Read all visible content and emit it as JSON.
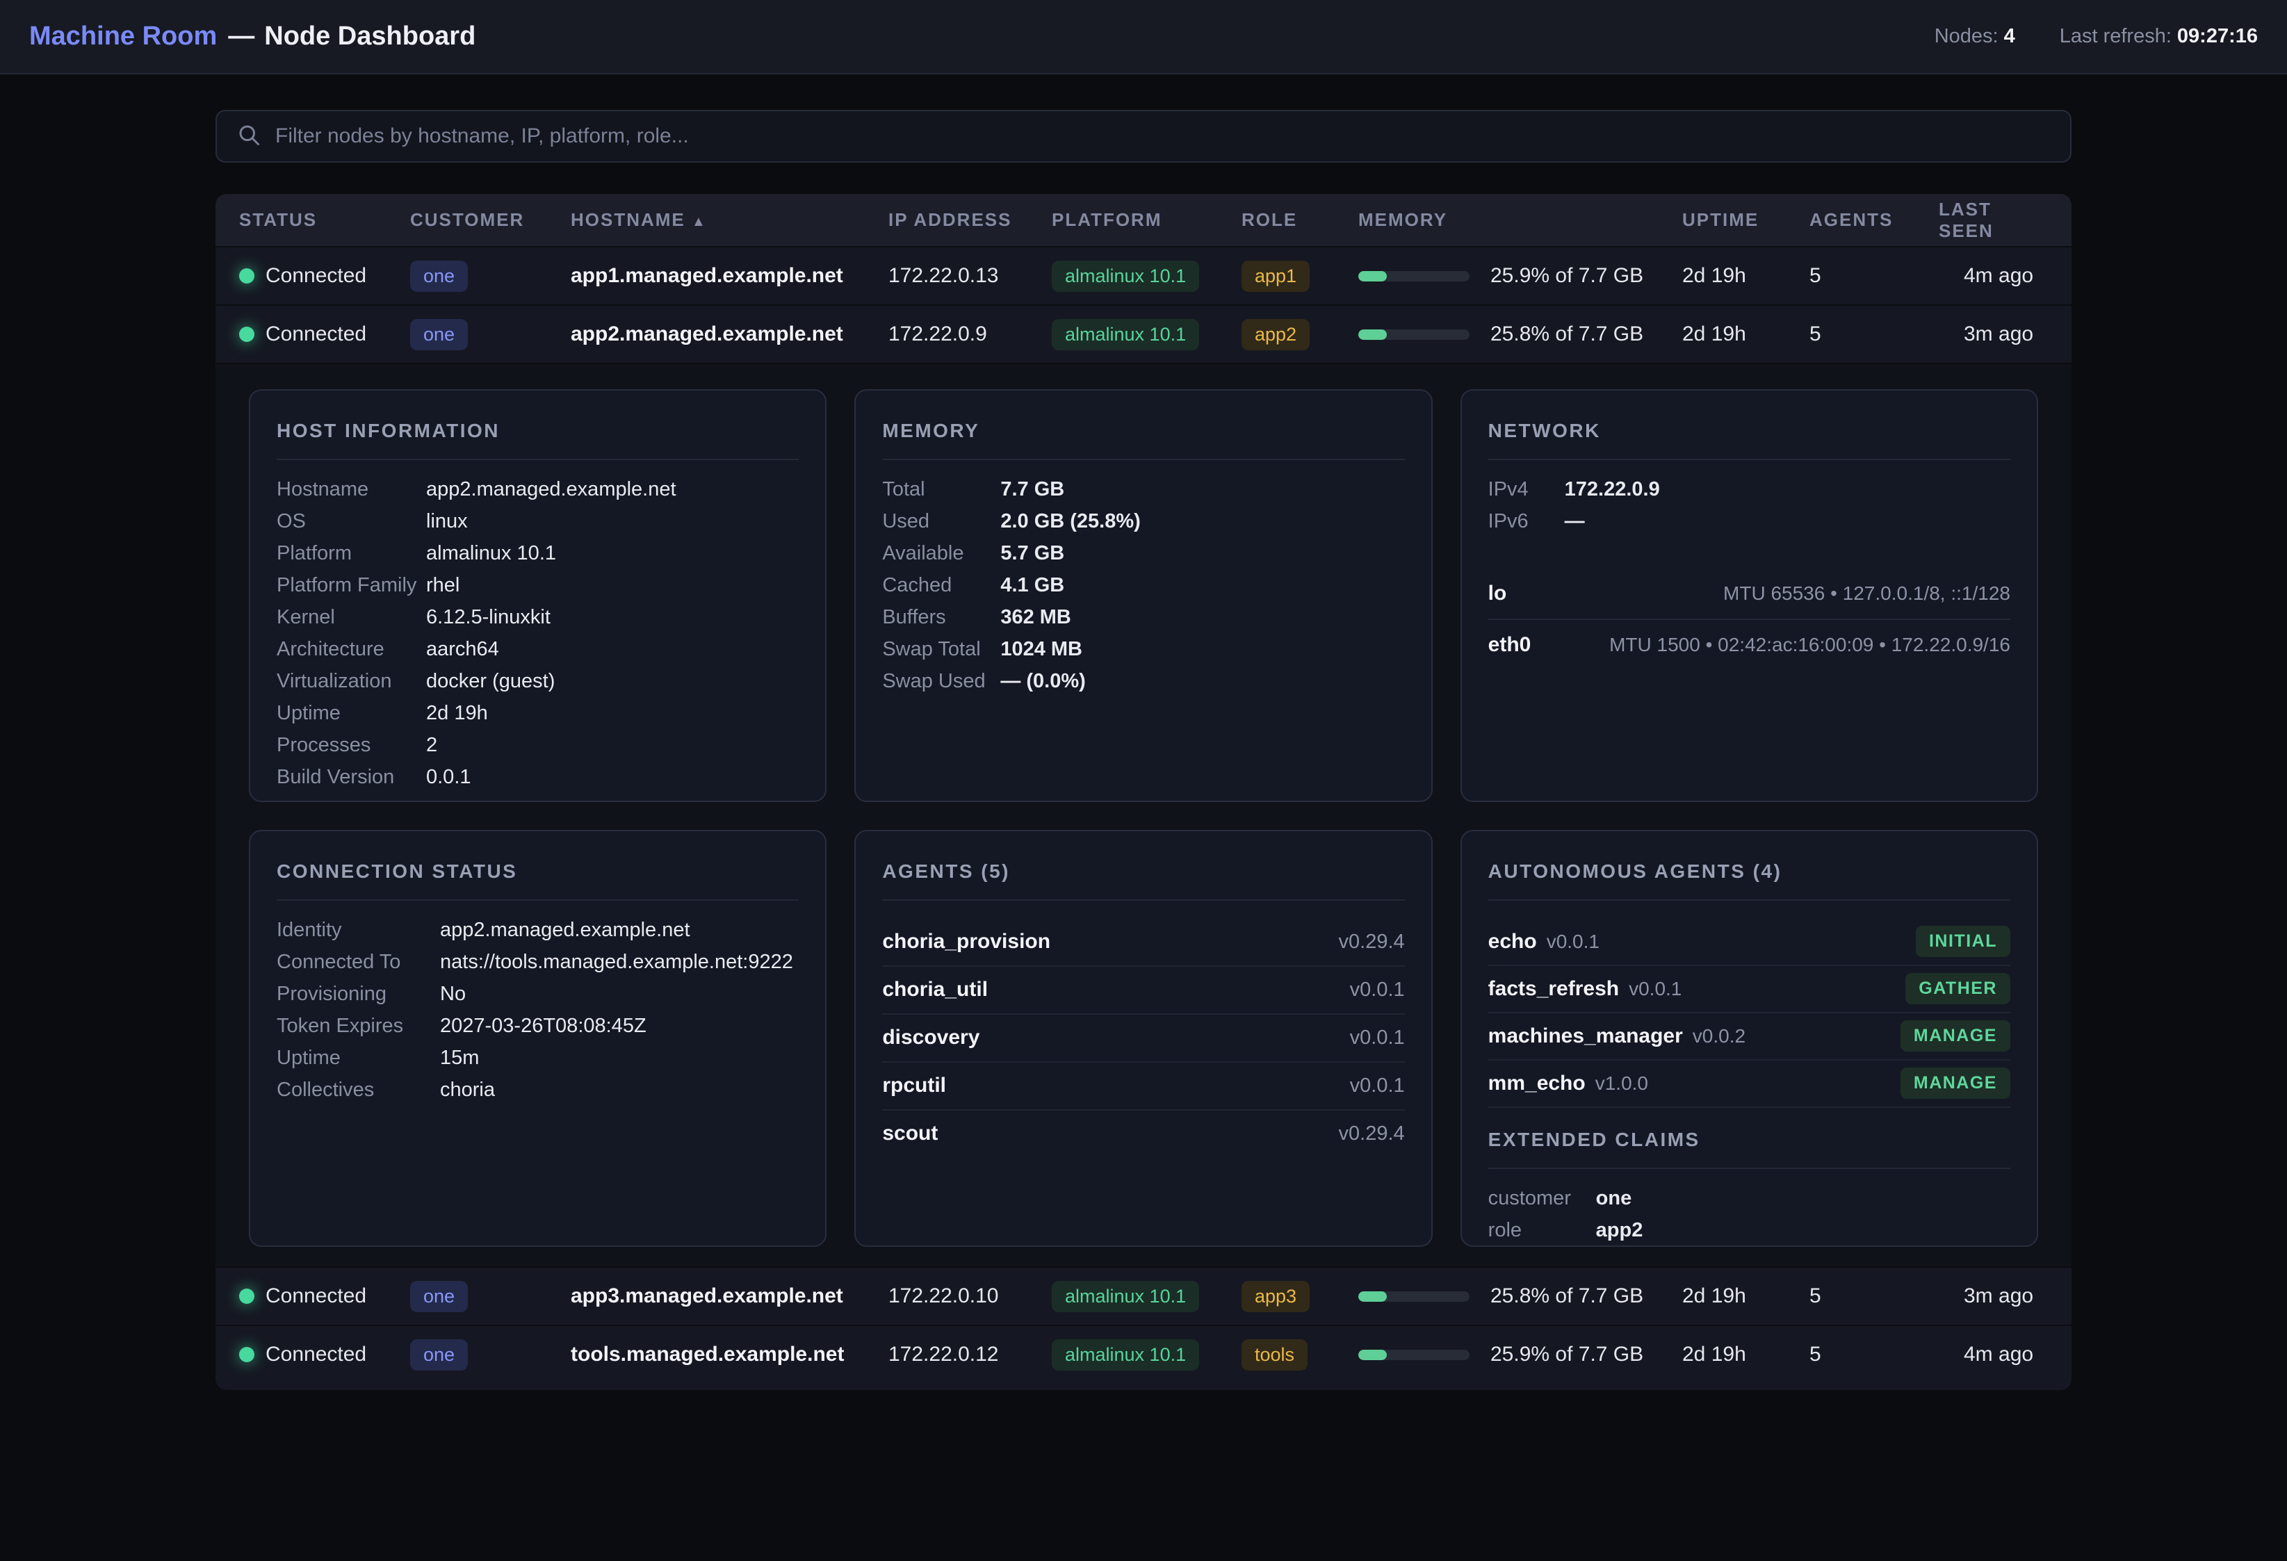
{
  "header": {
    "brand": "Machine Room",
    "separator": "—",
    "title": "Node Dashboard",
    "nodes_label": "Nodes:",
    "nodes_count": "4",
    "refresh_label": "Last refresh:",
    "refresh_time": "09:27:16"
  },
  "search": {
    "placeholder": "Filter nodes by hostname, IP, platform, role..."
  },
  "table": {
    "columns": {
      "status": "STATUS",
      "customer": "CUSTOMER",
      "hostname": "HOSTNAME",
      "sort_indicator": "▲",
      "ip": "IP ADDRESS",
      "platform": "PLATFORM",
      "role": "ROLE",
      "memory": "MEMORY",
      "uptime": "UPTIME",
      "agents": "AGENTS",
      "last_seen": "LAST SEEN"
    },
    "rows": [
      {
        "status": "Connected",
        "customer": "one",
        "hostname": "app1.managed.example.net",
        "ip": "172.22.0.13",
        "platform": "almalinux 10.1",
        "role": "app1",
        "memory_pct": 25.9,
        "memory_text": "25.9% of 7.7 GB",
        "uptime": "2d 19h",
        "agents": "5",
        "last_seen": "4m ago"
      },
      {
        "status": "Connected",
        "customer": "one",
        "hostname": "app2.managed.example.net",
        "ip": "172.22.0.9",
        "platform": "almalinux 10.1",
        "role": "app2",
        "memory_pct": 25.8,
        "memory_text": "25.8% of 7.7 GB",
        "uptime": "2d 19h",
        "agents": "5",
        "last_seen": "3m ago"
      },
      {
        "status": "Connected",
        "customer": "one",
        "hostname": "app3.managed.example.net",
        "ip": "172.22.0.10",
        "platform": "almalinux 10.1",
        "role": "app3",
        "memory_pct": 25.8,
        "memory_text": "25.8% of 7.7 GB",
        "uptime": "2d 19h",
        "agents": "5",
        "last_seen": "3m ago"
      },
      {
        "status": "Connected",
        "customer": "one",
        "hostname": "tools.managed.example.net",
        "ip": "172.22.0.12",
        "platform": "almalinux 10.1",
        "role": "tools",
        "memory_pct": 25.9,
        "memory_text": "25.9% of 7.7 GB",
        "uptime": "2d 19h",
        "agents": "5",
        "last_seen": "4m ago"
      }
    ]
  },
  "detail": {
    "host_information": {
      "title": "HOST INFORMATION",
      "rows": [
        {
          "label": "Hostname",
          "value": "app2.managed.example.net"
        },
        {
          "label": "OS",
          "value": "linux"
        },
        {
          "label": "Platform",
          "value": "almalinux 10.1"
        },
        {
          "label": "Platform Family",
          "value": "rhel"
        },
        {
          "label": "Kernel",
          "value": "6.12.5-linuxkit"
        },
        {
          "label": "Architecture",
          "value": "aarch64"
        },
        {
          "label": "Virtualization",
          "value": "docker (guest)"
        },
        {
          "label": "Uptime",
          "value": "2d 19h"
        },
        {
          "label": "Processes",
          "value": "2"
        },
        {
          "label": "Build Version",
          "value": "0.0.1"
        }
      ]
    },
    "memory": {
      "title": "MEMORY",
      "rows": [
        {
          "label": "Total",
          "value": "7.7 GB"
        },
        {
          "label": "Used",
          "value": "2.0 GB (25.8%)"
        },
        {
          "label": "Available",
          "value": "5.7 GB"
        },
        {
          "label": "Cached",
          "value": "4.1 GB"
        },
        {
          "label": "Buffers",
          "value": "362 MB"
        },
        {
          "label": "Swap Total",
          "value": "1024 MB"
        },
        {
          "label": "Swap Used",
          "value": "— (0.0%)"
        }
      ]
    },
    "network": {
      "title": "NETWORK",
      "rows": [
        {
          "label": "IPv4",
          "value": "172.22.0.9"
        },
        {
          "label": "IPv6",
          "value": "—"
        }
      ],
      "interfaces": [
        {
          "name": "lo",
          "spec": "MTU 65536 • 127.0.0.1/8, ::1/128"
        },
        {
          "name": "eth0",
          "spec": "MTU 1500 • 02:42:ac:16:00:09 • 172.22.0.9/16"
        }
      ]
    },
    "connection_status": {
      "title": "CONNECTION STATUS",
      "rows": [
        {
          "label": "Identity",
          "value": "app2.managed.example.net"
        },
        {
          "label": "Connected To",
          "value": "nats://tools.managed.example.net:9222"
        },
        {
          "label": "Provisioning",
          "value": "No"
        },
        {
          "label": "Token Expires",
          "value": "2027-03-26T08:08:45Z"
        },
        {
          "label": "Uptime",
          "value": "15m"
        },
        {
          "label": "Collectives",
          "value": "choria"
        }
      ]
    },
    "agents": {
      "title": "AGENTS (5)",
      "items": [
        {
          "name": "choria_provision",
          "version": "v0.29.4"
        },
        {
          "name": "choria_util",
          "version": "v0.0.1"
        },
        {
          "name": "discovery",
          "version": "v0.0.1"
        },
        {
          "name": "rpcutil",
          "version": "v0.0.1"
        },
        {
          "name": "scout",
          "version": "v0.29.4"
        }
      ]
    },
    "autonomous_agents": {
      "title": "AUTONOMOUS AGENTS (4)",
      "items": [
        {
          "name": "echo",
          "version": "v0.0.1",
          "state": "INITIAL"
        },
        {
          "name": "facts_refresh",
          "version": "v0.0.1",
          "state": "GATHER"
        },
        {
          "name": "machines_manager",
          "version": "v0.0.2",
          "state": "MANAGE"
        },
        {
          "name": "mm_echo",
          "version": "v1.0.0",
          "state": "MANAGE"
        }
      ]
    },
    "extended_claims": {
      "title": "EXTENDED CLAIMS",
      "rows": [
        {
          "label": "customer",
          "value": "one"
        },
        {
          "label": "role",
          "value": "app2"
        }
      ]
    }
  }
}
